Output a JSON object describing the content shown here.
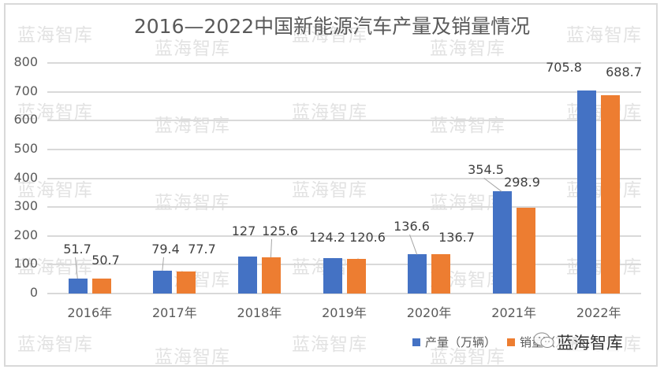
{
  "chart_data": {
    "type": "bar",
    "title": "2016—2022中国新能源汽车产量及销量情况",
    "categories": [
      "2016年",
      "2017年",
      "2018年",
      "2019年",
      "2020年",
      "2021年",
      "2022年"
    ],
    "series": [
      {
        "name": "产量（万辆）",
        "color": "#4472c4",
        "values": [
          51.7,
          79.4,
          127,
          124.2,
          136.6,
          354.5,
          705.8
        ]
      },
      {
        "name": "销量（万辆）",
        "color": "#ed7d31",
        "values": [
          50.7,
          77.7,
          125.6,
          120.6,
          136.7,
          298.9,
          688.7
        ]
      }
    ],
    "xlabel": "",
    "ylabel": "",
    "ylim": [
      0,
      800
    ],
    "yticks": [
      0,
      100,
      200,
      300,
      400,
      500,
      600,
      700,
      800
    ],
    "grid": true,
    "legend_position": "bottom-right",
    "data_labels": true
  },
  "title": "2016—2022中国新能源汽车产量及销量情况",
  "yticks": [
    "800",
    "700",
    "600",
    "500",
    "400",
    "300",
    "200",
    "100",
    "0"
  ],
  "legend": {
    "production": "产量（万辆）",
    "sales": "销量（万辆）"
  },
  "watermark": "蓝海智库",
  "overlay_brand": "蓝海智库",
  "colors": {
    "production": "#4472c4",
    "sales": "#ed7d31",
    "grid": "#d9d9d9",
    "text": "#595959"
  }
}
